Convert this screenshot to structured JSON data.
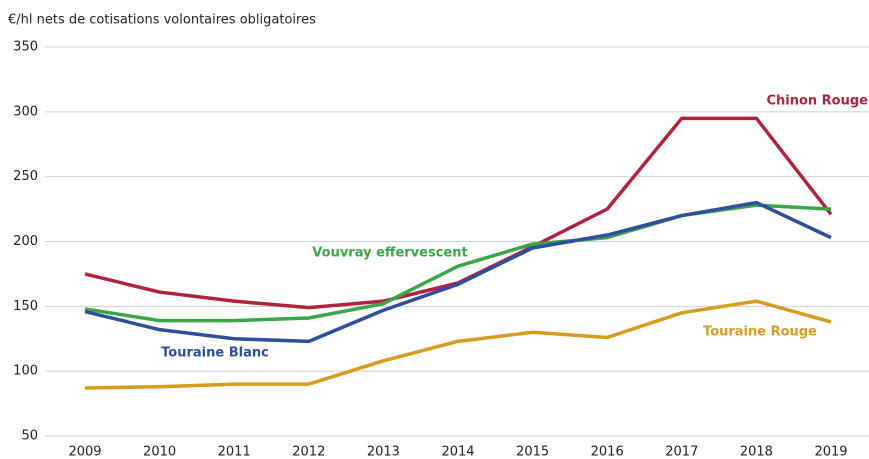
{
  "chart_data": {
    "type": "line",
    "y_axis_label": "€/hl nets de cotisations volontaires obligatoires",
    "categories": [
      "2009",
      "2010",
      "2011",
      "2012",
      "2013",
      "2014",
      "2015",
      "2016",
      "2017",
      "2018",
      "2019"
    ],
    "series": [
      {
        "name": "Chinon Rouge",
        "color": "#b0233f",
        "values": [
          175,
          161,
          154,
          149,
          154,
          168,
          196,
          225,
          295,
          295,
          221
        ]
      },
      {
        "name": "Vouvray effervescent",
        "color": "#3aa648",
        "values": [
          148,
          139,
          139,
          141,
          152,
          181,
          198,
          203,
          220,
          228,
          225
        ]
      },
      {
        "name": "Touraine Blanc",
        "color": "#2e4f9c",
        "values": [
          146,
          132,
          125,
          123,
          147,
          167,
          195,
          205,
          220,
          230,
          203
        ]
      },
      {
        "name": "Touraine Rouge",
        "color": "#d49d1e",
        "values": [
          87,
          88,
          90,
          90,
          108,
          123,
          130,
          126,
          145,
          154,
          138
        ]
      }
    ],
    "ylim": [
      50,
      350
    ],
    "yticks": [
      50,
      100,
      150,
      200,
      250,
      300,
      350
    ],
    "grid": true
  }
}
